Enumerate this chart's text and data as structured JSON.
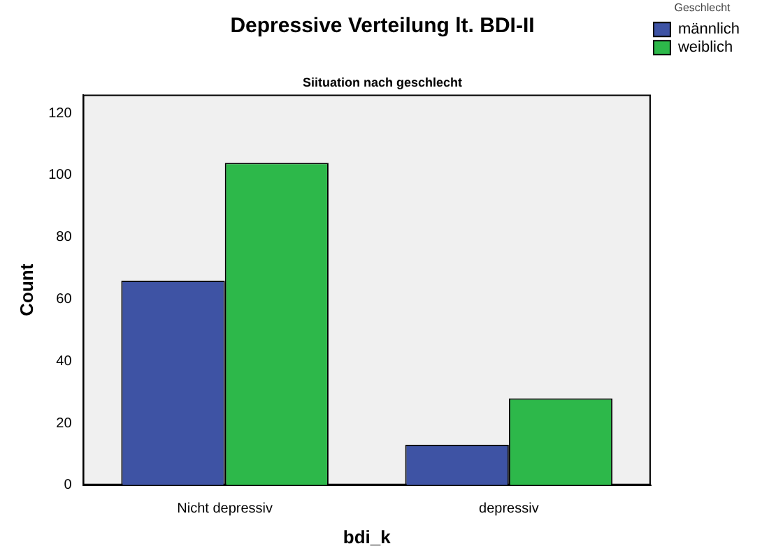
{
  "chart_data": {
    "type": "bar",
    "title": "Depressive Verteilung lt. BDI-II",
    "subtitle": "Siituation nach geschlecht",
    "xlabel": "bdi_k",
    "ylabel": "Count",
    "legend_title": "Geschlecht",
    "categories": [
      "Nicht depressiv",
      "depressiv"
    ],
    "series": [
      {
        "name": "männlich",
        "color": "#3e53a4",
        "values": [
          66,
          13
        ]
      },
      {
        "name": "weiblich",
        "color": "#2db84a",
        "values": [
          104,
          28
        ]
      }
    ],
    "ylim": [
      0,
      126
    ],
    "yticks": [
      0,
      20,
      40,
      60,
      80,
      100,
      120
    ],
    "grid": false,
    "legend": "top right"
  }
}
